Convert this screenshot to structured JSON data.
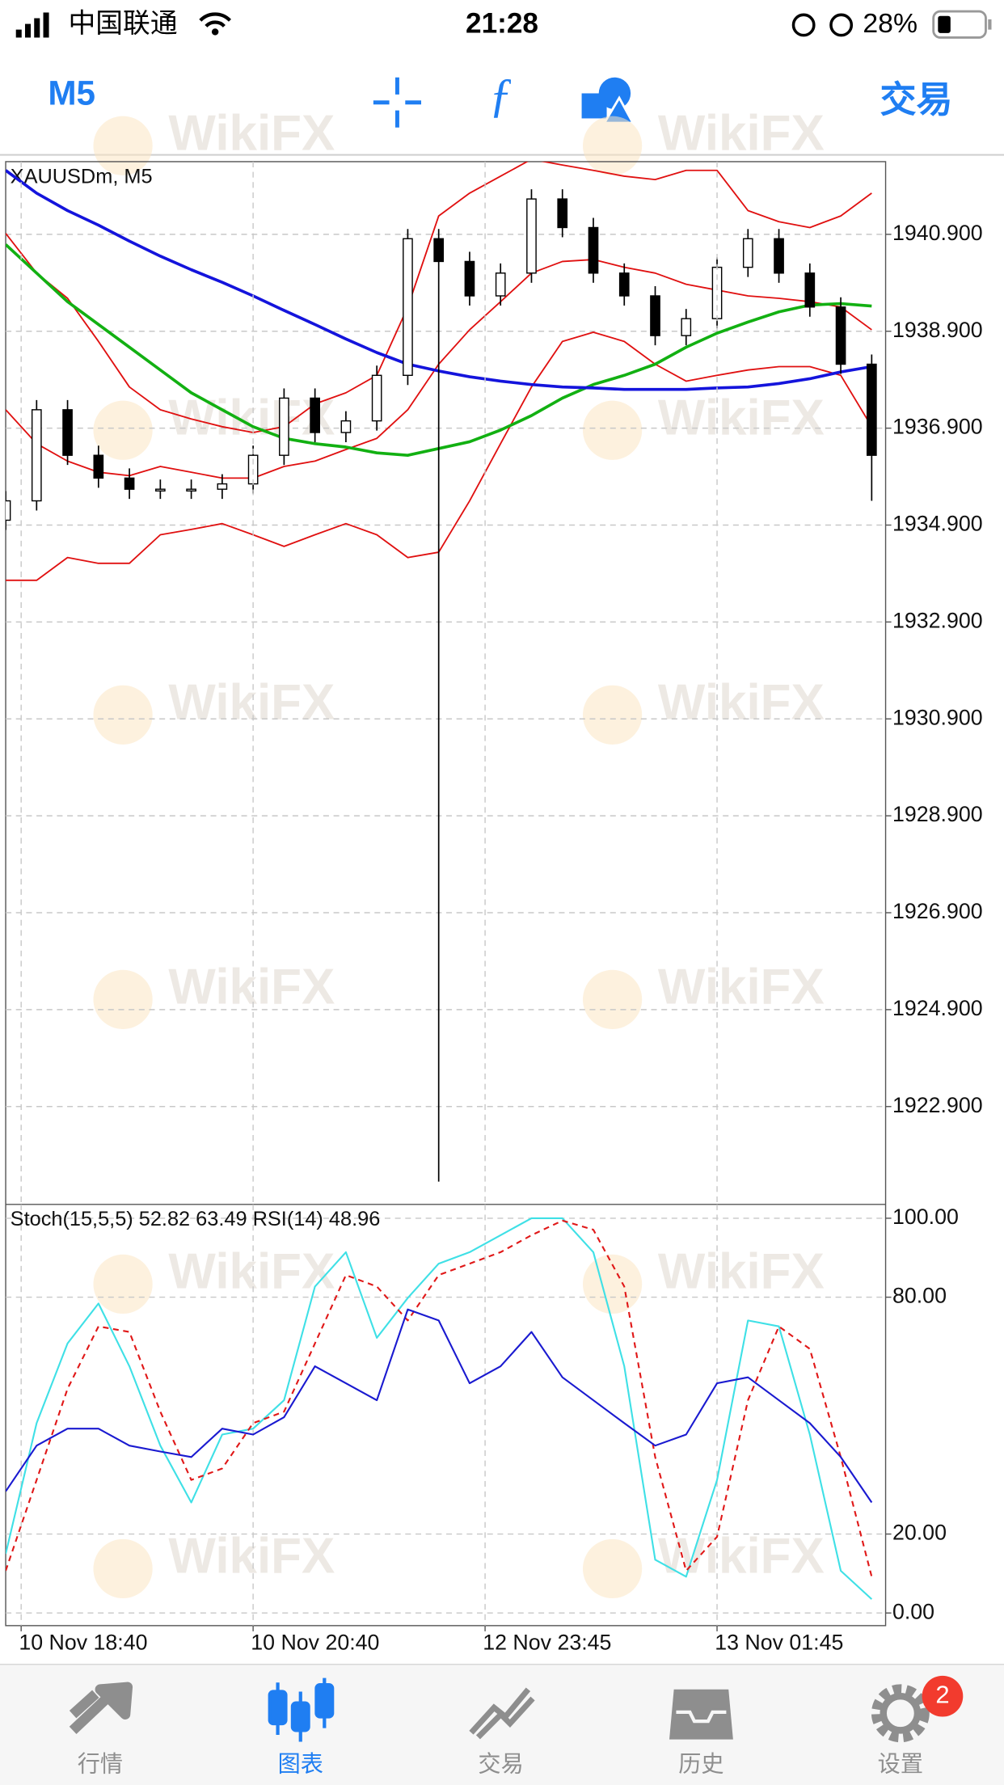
{
  "status_bar": {
    "carrier": "中国联通",
    "time": "21:28",
    "battery": "28%"
  },
  "toolbar": {
    "timeframe": "M5",
    "trade": "交易"
  },
  "watermark": "WikiFX",
  "chart_data": [
    {
      "type": "candlestick",
      "title": "XAUUSDm, M5",
      "x": [
        0,
        4,
        8,
        12,
        16,
        20,
        24,
        28,
        32,
        36,
        40,
        44,
        48,
        52,
        56,
        60,
        64,
        68,
        72,
        76,
        80,
        84,
        88,
        92,
        96,
        100,
        104,
        108,
        112
      ],
      "xlim": [
        0,
        113.8
      ],
      "ylim": [
        1920.88,
        1942.4
      ],
      "yticks": [
        {
          "value": 1940.9,
          "label": "1940.900"
        },
        {
          "value": 1938.9,
          "label": "1938.900"
        },
        {
          "value": 1936.9,
          "label": "1936.900"
        },
        {
          "value": 1934.9,
          "label": "1934.900"
        },
        {
          "value": 1932.9,
          "label": "1932.900"
        },
        {
          "value": 1930.9,
          "label": "1930.900"
        },
        {
          "value": 1928.9,
          "label": "1928.900"
        },
        {
          "value": 1926.9,
          "label": "1926.900"
        },
        {
          "value": 1924.9,
          "label": "1924.900"
        },
        {
          "value": 1922.9,
          "label": "1922.900"
        }
      ],
      "grid": true,
      "open": [
        1935.0,
        1935.4,
        1937.28,
        1936.34,
        1935.87,
        1935.64,
        1935.64,
        1935.64,
        1935.75,
        1936.34,
        1937.52,
        1936.81,
        1937.05,
        1937.99,
        1940.81,
        1940.34,
        1939.63,
        1940.1,
        1941.63,
        1941.04,
        1940.1,
        1939.63,
        1938.81,
        1939.16,
        1940.22,
        1940.81,
        1940.1,
        1939.4,
        1938.22
      ],
      "high": [
        1935.6,
        1937.48,
        1937.48,
        1936.54,
        1936.07,
        1935.84,
        1935.84,
        1935.95,
        1936.54,
        1937.72,
        1937.72,
        1937.25,
        1938.19,
        1941.01,
        1941.01,
        1940.54,
        1940.3,
        1941.83,
        1941.83,
        1941.24,
        1940.3,
        1939.83,
        1939.36,
        1940.42,
        1941.01,
        1941.01,
        1940.3,
        1939.6,
        1938.42
      ],
      "low": [
        1934.8,
        1935.2,
        1936.14,
        1935.67,
        1935.44,
        1935.44,
        1935.44,
        1935.44,
        1935.55,
        1936.14,
        1936.61,
        1936.61,
        1936.85,
        1937.79,
        1921.35,
        1939.43,
        1939.43,
        1939.9,
        1940.84,
        1939.9,
        1939.43,
        1938.61,
        1938.61,
        1938.96,
        1940.02,
        1939.9,
        1939.2,
        1938.02,
        1935.4
      ],
      "close": [
        1935.4,
        1937.28,
        1936.34,
        1935.87,
        1935.64,
        1935.64,
        1935.64,
        1935.75,
        1936.34,
        1937.52,
        1936.81,
        1937.05,
        1937.99,
        1940.81,
        1940.34,
        1939.63,
        1940.1,
        1941.63,
        1941.04,
        1940.1,
        1939.63,
        1938.81,
        1939.16,
        1940.22,
        1940.81,
        1940.1,
        1939.4,
        1938.22,
        1936.34
      ],
      "series": [
        {
          "color": "#e01010",
          "values": [
            1940.92,
            1940.1,
            1939.58,
            1938.69,
            1937.75,
            1937.28,
            1937.09,
            1936.93,
            1936.81,
            1936.93,
            1937.4,
            1937.63,
            1937.99,
            1939.4,
            1941.28,
            1941.75,
            1942.1,
            1942.45,
            1942.33,
            1942.22,
            1942.1,
            1942.03,
            1942.22,
            1942.22,
            1941.39,
            1941.16,
            1941.04,
            1941.28,
            1941.75
          ]
        },
        {
          "color": "#e01010",
          "values": [
            1937.28,
            1936.58,
            1936.22,
            1935.99,
            1935.92,
            1936.11,
            1935.99,
            1935.87,
            1935.87,
            1936.11,
            1936.22,
            1936.46,
            1936.69,
            1937.28,
            1938.22,
            1938.93,
            1939.51,
            1940.1,
            1940.34,
            1940.38,
            1940.22,
            1940.1,
            1939.87,
            1939.75,
            1939.63,
            1939.58,
            1939.51,
            1939.4,
            1938.93
          ]
        },
        {
          "color": "#e01010",
          "values": [
            1933.76,
            1933.76,
            1934.23,
            1934.11,
            1934.11,
            1934.7,
            1934.81,
            1934.93,
            1934.7,
            1934.46,
            1934.7,
            1934.93,
            1934.7,
            1934.23,
            1934.34,
            1935.4,
            1936.58,
            1937.75,
            1938.69,
            1938.88,
            1938.69,
            1938.22,
            1937.87,
            1937.99,
            1938.1,
            1938.17,
            1938.17,
            1937.99,
            1936.93
          ]
        },
        {
          "color": "#12b012",
          "values": [
            1940.69,
            1940.1,
            1939.51,
            1939.04,
            1938.57,
            1938.1,
            1937.63,
            1937.28,
            1936.93,
            1936.69,
            1936.58,
            1936.51,
            1936.39,
            1936.34,
            1936.48,
            1936.62,
            1936.86,
            1937.16,
            1937.52,
            1937.8,
            1937.99,
            1938.22,
            1938.57,
            1938.86,
            1939.09,
            1939.3,
            1939.44,
            1939.47,
            1939.42
          ]
        },
        {
          "color": "#1414dc",
          "values": [
            1942.22,
            1941.75,
            1941.39,
            1941.09,
            1940.76,
            1940.45,
            1940.17,
            1939.91,
            1939.63,
            1939.33,
            1939.04,
            1938.74,
            1938.46,
            1938.22,
            1938.08,
            1937.96,
            1937.87,
            1937.8,
            1937.75,
            1937.73,
            1937.7,
            1937.7,
            1937.7,
            1937.73,
            1937.75,
            1937.82,
            1937.92,
            1938.06,
            1938.17
          ]
        }
      ]
    },
    {
      "type": "line",
      "title": "Stoch(15,5,5) 52.82 63.49 RSI(14) 48.96",
      "x": [
        0,
        4,
        8,
        12,
        16,
        20,
        24,
        28,
        32,
        36,
        40,
        44,
        48,
        52,
        56,
        60,
        64,
        68,
        72,
        76,
        80,
        84,
        88,
        92,
        96,
        100,
        104,
        108,
        112
      ],
      "xlim": [
        0,
        113.8
      ],
      "xticks": [
        {
          "value": 2,
          "label": "10 Nov 18:40"
        },
        {
          "value": 32,
          "label": "10 Nov 20:40"
        },
        {
          "value": 62,
          "label": "12 Nov 23:45"
        },
        {
          "value": 92,
          "label": "13 Nov 01:45"
        }
      ],
      "ylim": [
        -3.2,
        103.5
      ],
      "yticks": [
        {
          "value": 100,
          "label": "100.00"
        },
        {
          "value": 80,
          "label": "80.00"
        },
        {
          "value": 20,
          "label": "20.00"
        },
        {
          "value": 0,
          "label": "0.00"
        }
      ],
      "grid": true,
      "series": [
        {
          "color": "#3fe0e6",
          "dashed": false,
          "values": [
            15.0,
            48.1,
            68.3,
            78.4,
            62.5,
            42.4,
            28.0,
            45.2,
            46.7,
            53.9,
            82.7,
            91.4,
            69.7,
            79.8,
            88.5,
            91.4,
            95.7,
            100.0,
            100.0,
            91.4,
            62.5,
            13.5,
            9.2,
            33.7,
            74.1,
            72.6,
            45.2,
            10.7,
            3.5
          ]
        },
        {
          "color": "#e01818",
          "dashed": true,
          "values": [
            10.7,
            33.7,
            56.8,
            72.6,
            71.2,
            51.0,
            33.7,
            36.6,
            48.1,
            51.0,
            68.3,
            85.6,
            82.7,
            74.1,
            85.6,
            88.5,
            91.4,
            95.7,
            99.4,
            97.1,
            82.7,
            39.5,
            10.7,
            19.3,
            53.9,
            72.6,
            66.9,
            39.5,
            9.2
          ]
        },
        {
          "color": "#1a1ad0",
          "dashed": false,
          "values": [
            30.8,
            42.4,
            46.7,
            46.7,
            42.4,
            40.9,
            39.5,
            46.7,
            45.2,
            49.6,
            62.5,
            58.2,
            53.9,
            76.9,
            74.1,
            58.2,
            62.5,
            71.2,
            59.7,
            53.9,
            48.1,
            42.4,
            45.2,
            58.2,
            59.7,
            53.9,
            48.1,
            39.5,
            28.0
          ]
        }
      ]
    }
  ],
  "tab_bar": {
    "tabs": [
      "行情",
      "图表",
      "交易",
      "历史",
      "设置"
    ],
    "badge": "2"
  }
}
